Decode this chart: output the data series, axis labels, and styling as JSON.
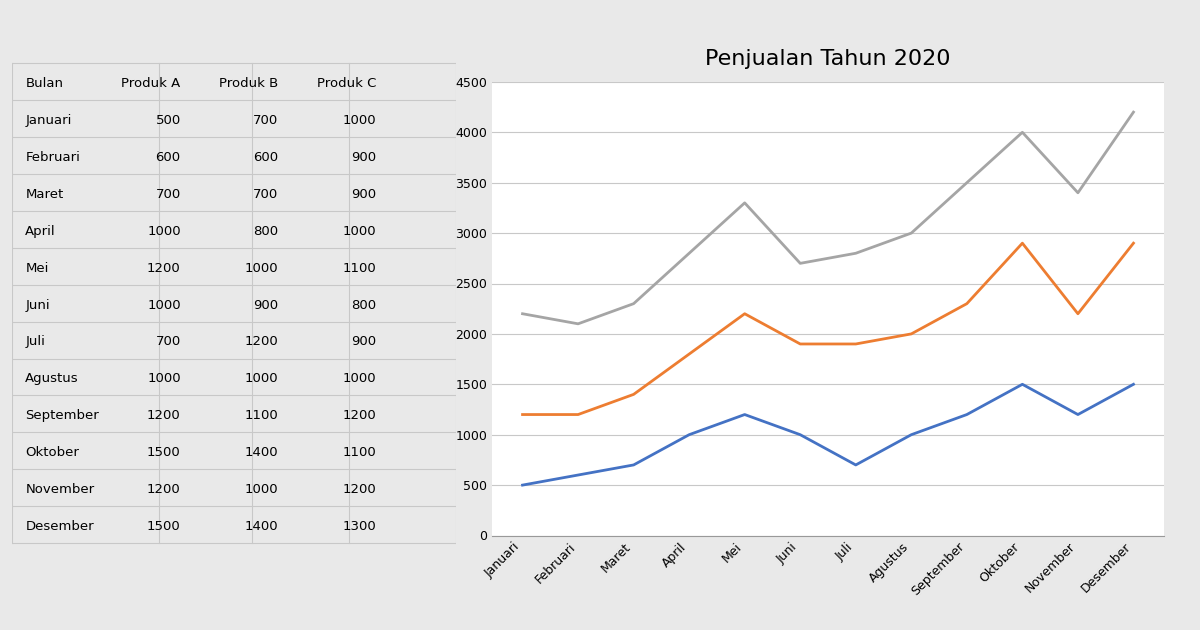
{
  "title": "Penjualan Tahun 2020",
  "months": [
    "Januari",
    "Februari",
    "Maret",
    "April",
    "Mei",
    "Juni",
    "Juli",
    "Agustus",
    "September",
    "Oktober",
    "November",
    "Desember"
  ],
  "produk_a": [
    500,
    600,
    700,
    1000,
    1200,
    1000,
    700,
    1000,
    1200,
    1500,
    1200,
    1500
  ],
  "produk_b": [
    700,
    600,
    700,
    800,
    1000,
    900,
    1200,
    1000,
    1100,
    1400,
    1000,
    1400
  ],
  "produk_c": [
    1000,
    900,
    900,
    1000,
    1100,
    800,
    900,
    1000,
    1200,
    1100,
    1200,
    1300
  ],
  "color_a": "#4472C4",
  "color_b": "#ED7D31",
  "color_c": "#A5A5A5",
  "table_headers": [
    "Bulan",
    "Produk A",
    "Produk B",
    "Produk C"
  ],
  "ylim": [
    0,
    4500
  ],
  "yticks": [
    0,
    500,
    1000,
    1500,
    2000,
    2500,
    3000,
    3500,
    4000,
    4500
  ],
  "bg_color": "#E9E9E9",
  "chart_bg": "#FFFFFF",
  "grid_color": "#C8C8C8",
  "title_fontsize": 16,
  "tick_fontsize": 9,
  "legend_fontsize": 10
}
